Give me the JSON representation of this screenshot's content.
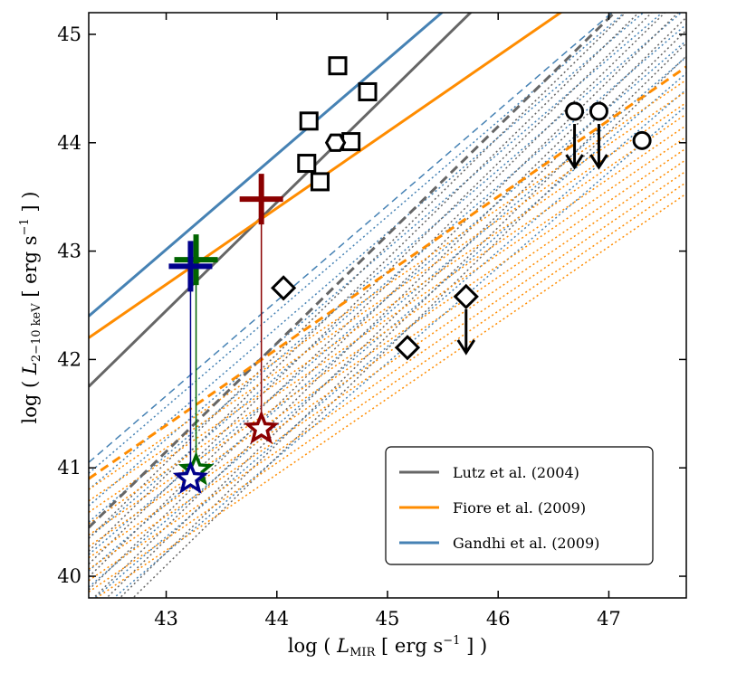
{
  "chart_data": {
    "type": "scatter",
    "title": "",
    "xlabel": "log ( L_MIR [ erg s^-1 ] )",
    "ylabel": "log ( L_2-10keV [ erg s^-1 ] )",
    "xlabel_parts": {
      "pre": "log ( ",
      "sym": "L",
      "sub": "MIR",
      "mid": " [ erg s",
      "sup": "−1",
      "post": " ] )"
    },
    "ylabel_parts": {
      "pre": "log ( ",
      "sym": "L",
      "sub": "2−10 keV",
      "mid": " [ erg s",
      "sup": "−1",
      "post": " ] )"
    },
    "xlim": [
      42.3,
      47.7
    ],
    "ylim": [
      39.8,
      45.2
    ],
    "xticks": [
      43,
      44,
      45,
      46,
      47
    ],
    "yticks": [
      40,
      41,
      42,
      43,
      44,
      45
    ],
    "xtick_labels": [
      "43",
      "44",
      "45",
      "46",
      "47"
    ],
    "ytick_labels": [
      "40",
      "41",
      "42",
      "43",
      "44",
      "45"
    ],
    "grid": false,
    "legend_position": "lower-right",
    "relations": [
      {
        "name": "Lutz et al. (2004)",
        "color": "#666666",
        "points": [
          [
            42.3,
            41.75
          ],
          [
            47.7,
            47.15
          ]
        ]
      },
      {
        "name": "Fiore et al. (2009)",
        "color": "#ff8c00",
        "points": [
          [
            42.3,
            42.2
          ],
          [
            47.7,
            46.0
          ]
        ]
      },
      {
        "name": "Gandhi et al. (2009)",
        "color": "#4682b4",
        "points": [
          [
            42.3,
            42.4
          ],
          [
            47.7,
            47.14
          ]
        ]
      }
    ],
    "dashed_relations": [
      {
        "color": "#4682b4",
        "points": [
          [
            42.3,
            41.05
          ],
          [
            47.7,
            45.79
          ]
        ]
      },
      {
        "color": "#666666",
        "points": [
          [
            42.3,
            40.45
          ],
          [
            47.7,
            45.85
          ]
        ]
      },
      {
        "color": "#ff8c00",
        "points": [
          [
            42.3,
            40.9
          ],
          [
            47.7,
            44.7
          ]
        ]
      }
    ],
    "dotted_families": [
      {
        "color": "#4682b4",
        "slope": 0.878,
        "start_y": 40.95,
        "end_y": 39.6,
        "count": 10
      },
      {
        "color": "#666666",
        "slope": 1.0,
        "start_y": 40.35,
        "end_y": 39.4,
        "count": 9
      },
      {
        "color": "#ff8c00",
        "slope": 0.7,
        "start_y": 40.8,
        "end_y": 39.75,
        "count": 11
      }
    ],
    "squares": [
      [
        44.55,
        44.71
      ],
      [
        44.82,
        44.47
      ],
      [
        44.29,
        44.2
      ],
      [
        44.67,
        44.01
      ],
      [
        44.27,
        43.81
      ],
      [
        44.39,
        43.64
      ]
    ],
    "diamonds": [
      [
        44.06,
        42.66
      ],
      [
        45.71,
        42.58
      ],
      [
        45.18,
        42.11
      ]
    ],
    "diamond_upper_limits": [
      [
        45.71,
        42.58
      ]
    ],
    "hexagons": [
      [
        44.53,
        44.0
      ]
    ],
    "circles": [
      [
        46.69,
        44.29
      ],
      [
        46.91,
        44.29
      ],
      [
        47.3,
        44.02
      ]
    ],
    "circle_upper_limits": [
      [
        46.69,
        44.29
      ],
      [
        46.91,
        44.29
      ]
    ],
    "sources": [
      {
        "color": "#006400",
        "plus": [
          43.27,
          42.92
        ],
        "star": [
          43.27,
          40.98
        ]
      },
      {
        "color": "#00008b",
        "plus": [
          43.22,
          42.86
        ],
        "star": [
          43.22,
          40.9
        ]
      },
      {
        "color": "#8b0000",
        "plus": [
          43.86,
          43.48
        ],
        "star": [
          43.86,
          41.36
        ]
      }
    ]
  }
}
